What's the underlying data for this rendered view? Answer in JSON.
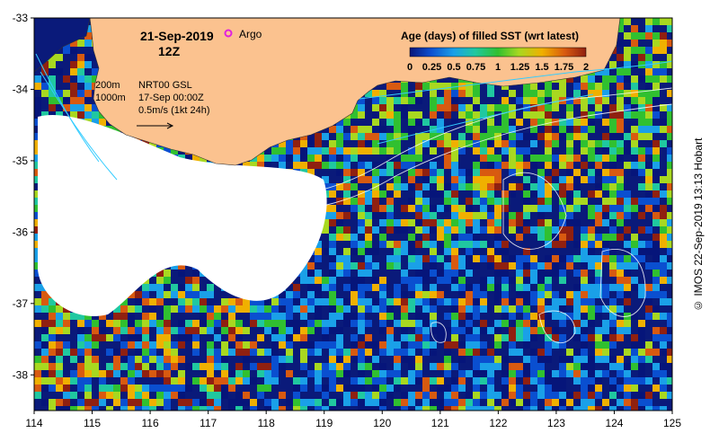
{
  "header": {
    "date": "21-Sep-2019",
    "time": "12Z",
    "argo_label": "Argo"
  },
  "overlay": {
    "contour_200": "200m",
    "contour_1000": "1000m",
    "gsl_label": "NRT00 GSL",
    "gsl_date": "17-Sep 00:00Z",
    "current_scale": "0.5m/s (1kt 24h)"
  },
  "colorbar": {
    "title": "Age (days) of filled SST (wrt latest)",
    "tick_labels": [
      "0",
      "0.25",
      "0.5",
      "0.75",
      "1",
      "1.25",
      "1.5",
      "1.75",
      "2"
    ],
    "min": 0,
    "max": 2
  },
  "axes": {
    "x_ticks": [
      "114",
      "115",
      "116",
      "117",
      "118",
      "119",
      "120",
      "121",
      "122",
      "123",
      "124",
      "125"
    ],
    "y_ticks": [
      "-33",
      "-34",
      "-35",
      "-36",
      "-37",
      "-38"
    ],
    "lon_range": [
      114,
      125
    ],
    "lat_range": [
      -38.5,
      -33
    ]
  },
  "credit": "© IMOS 22-Sep-2019 13:13 Hobart",
  "colors": {
    "land": "#FBC28F",
    "deep_ocean": "#0A1A7A",
    "age_scale": [
      "#06157a",
      "#0a4fd0",
      "#1aa0e8",
      "#20c8a0",
      "#30c030",
      "#a8d820",
      "#f0b000",
      "#d85a10",
      "#902010"
    ]
  }
}
